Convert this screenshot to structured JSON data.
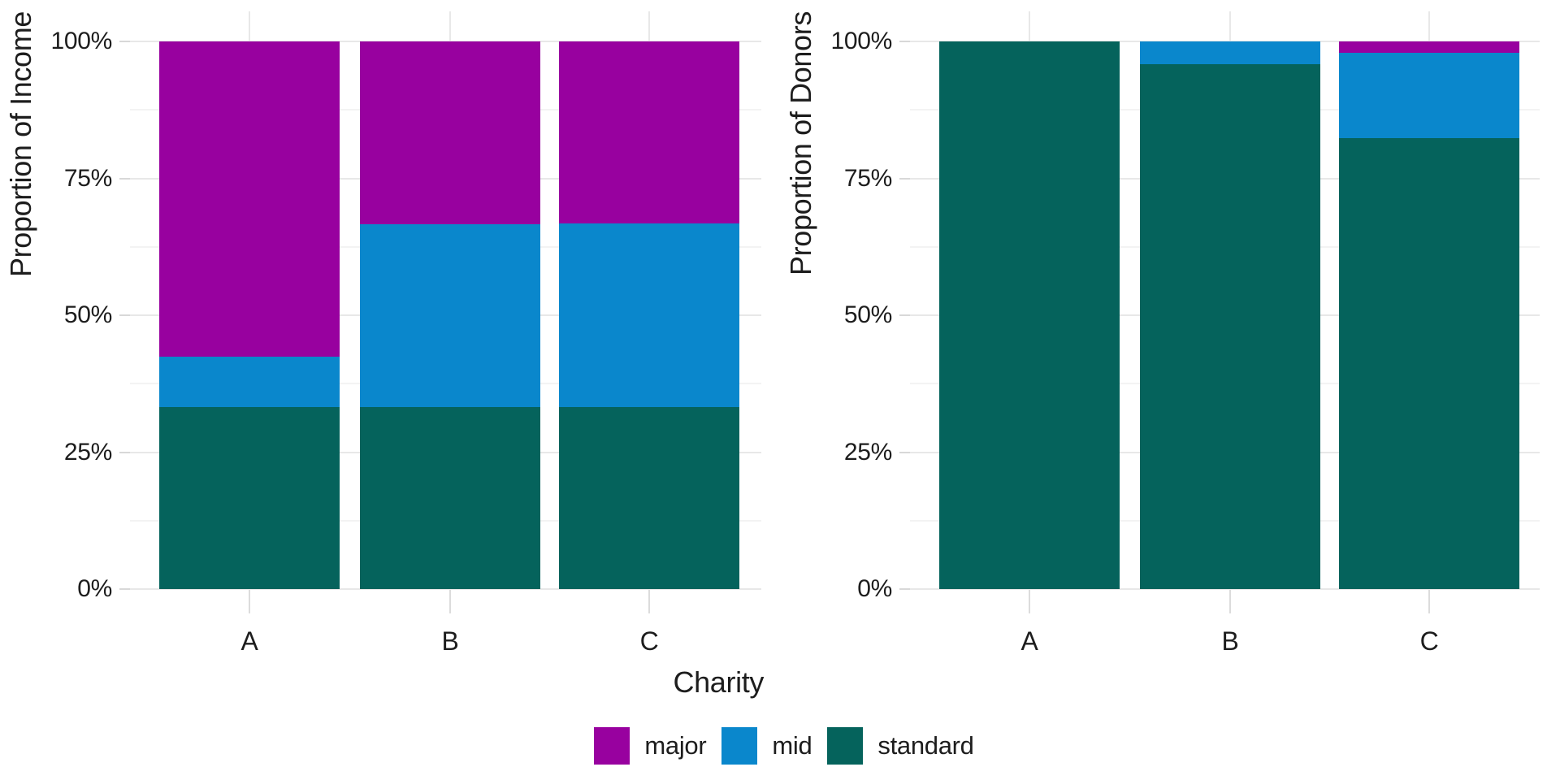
{
  "figure": {
    "background": "#FFFFFF",
    "text_color": "#1D1D1D",
    "gridline_major_color": "#E8E8E8",
    "gridline_minor_color": "#F3F3F3",
    "xlabel": "Charity",
    "legend": {
      "position": "bottom",
      "items": [
        {
          "label": "major",
          "color": "#98019F"
        },
        {
          "label": "mid",
          "color": "#0A87CC"
        },
        {
          "label": "standard",
          "color": "#05635C"
        }
      ]
    }
  },
  "chart_data": [
    {
      "type": "bar",
      "stacked": true,
      "stack_normalized": true,
      "title": "",
      "xlabel": "Charity",
      "ylabel": "Proportion of Income",
      "categories": [
        "A",
        "B",
        "C"
      ],
      "series": [
        {
          "name": "major",
          "color": "#98019F",
          "values": [
            57.5,
            33.4,
            33.3
          ]
        },
        {
          "name": "mid",
          "color": "#0A87CC",
          "values": [
            9.2,
            33.3,
            33.4
          ]
        },
        {
          "name": "standard",
          "color": "#05635C",
          "values": [
            33.3,
            33.3,
            33.3
          ]
        }
      ],
      "ylim": [
        0,
        100
      ],
      "yticks": [
        "0%",
        "25%",
        "50%",
        "75%",
        "100%"
      ],
      "grid": true,
      "legend_position": "bottom"
    },
    {
      "type": "bar",
      "stacked": true,
      "stack_normalized": true,
      "title": "",
      "xlabel": "",
      "ylabel": "Proportion of Donors",
      "categories": [
        "A",
        "B",
        "C"
      ],
      "series": [
        {
          "name": "major",
          "color": "#98019F",
          "values": [
            0,
            0,
            2.1
          ]
        },
        {
          "name": "mid",
          "color": "#0A87CC",
          "values": [
            0,
            4.2,
            15.6
          ]
        },
        {
          "name": "standard",
          "color": "#05635C",
          "values": [
            100,
            95.8,
            82.3
          ]
        }
      ],
      "ylim": [
        0,
        100
      ],
      "yticks": [
        "0%",
        "25%",
        "50%",
        "75%",
        "100%"
      ],
      "grid": true,
      "legend_position": "bottom"
    }
  ]
}
